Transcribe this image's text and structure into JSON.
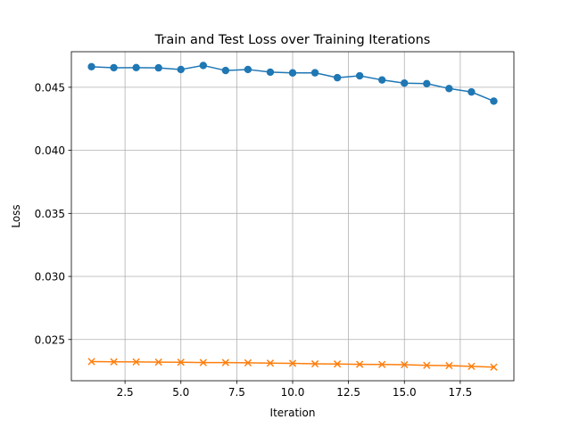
{
  "chart_data": {
    "type": "line",
    "title": "Train and Test Loss over Training Iterations",
    "xlabel": "Iteration",
    "ylabel": "Loss",
    "x": [
      1,
      2,
      3,
      4,
      5,
      6,
      7,
      8,
      9,
      10,
      11,
      12,
      13,
      14,
      15,
      16,
      17,
      18,
      19
    ],
    "series": [
      {
        "color": "#1f77b4",
        "marker": "circle",
        "values": [
          0.04663,
          0.04655,
          0.04656,
          0.04654,
          0.04641,
          0.04673,
          0.04633,
          0.04641,
          0.0462,
          0.04614,
          0.04615,
          0.04576,
          0.04591,
          0.04558,
          0.04533,
          0.04529,
          0.0449,
          0.04463,
          0.0439
        ]
      },
      {
        "color": "#ff7f0e",
        "marker": "x",
        "values": [
          0.02325,
          0.02323,
          0.02322,
          0.02321,
          0.0232,
          0.02317,
          0.02317,
          0.02315,
          0.02313,
          0.02311,
          0.02307,
          0.02306,
          0.02303,
          0.02302,
          0.023,
          0.02295,
          0.02293,
          0.02287,
          0.02281
        ]
      }
    ],
    "xlim": [
      0.1,
      19.9
    ],
    "ylim": [
      0.02173,
      0.04782
    ],
    "xticks": [
      2.5,
      5.0,
      7.5,
      10.0,
      12.5,
      15.0,
      17.5
    ],
    "xtick_labels": [
      "2.5",
      "5.0",
      "7.5",
      "10.0",
      "12.5",
      "15.0",
      "17.5"
    ],
    "yticks": [
      0.025,
      0.03,
      0.035,
      0.04,
      0.045
    ],
    "ytick_labels": [
      "0.025",
      "0.030",
      "0.035",
      "0.040",
      "0.045"
    ],
    "grid": true,
    "legend": "none"
  }
}
